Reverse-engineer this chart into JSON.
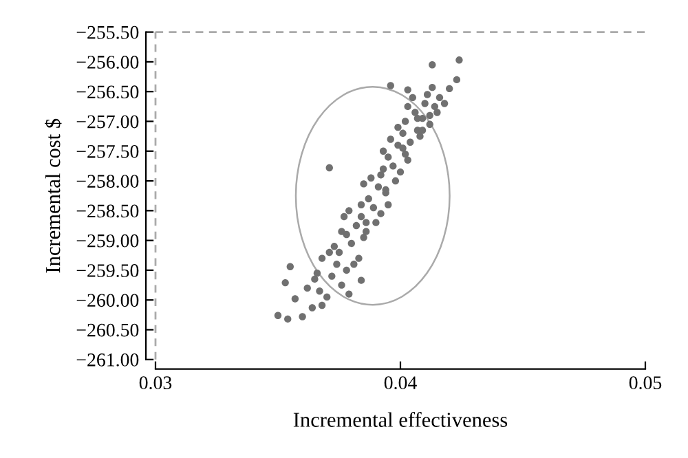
{
  "chart_data": {
    "type": "scatter",
    "xlabel": "Incremental effectiveness",
    "ylabel": "Incremental cost $",
    "xlim": [
      0.03,
      0.05
    ],
    "xticks": [
      0.03,
      0.04,
      0.05
    ],
    "ylim": [
      -261,
      -255.5
    ],
    "yticks": [
      {
        "value": -261,
        "label": "−261.00"
      },
      {
        "value": -260.5,
        "label": "−260.50"
      },
      {
        "value": -260,
        "label": "−260.00"
      },
      {
        "value": -259.5,
        "label": "−259.50"
      },
      {
        "value": -259,
        "label": "−259.00"
      },
      {
        "value": -258.5,
        "label": "−258.50"
      },
      {
        "value": -258,
        "label": "−258.00"
      },
      {
        "value": -257.5,
        "label": "−257.50"
      },
      {
        "value": -257,
        "label": "−257.00"
      },
      {
        "value": -256.5,
        "label": "−256.50"
      },
      {
        "value": -256,
        "label": "−256.00"
      },
      {
        "value": -255.5,
        "label": "−255.50"
      }
    ],
    "grid": false,
    "marker": "circle",
    "ref_lines": [
      {
        "axis": "x",
        "value": 0.03,
        "label": null,
        "color": "#aaaaaa",
        "line_style": "dashed"
      },
      {
        "axis": "y",
        "value": -255.5,
        "label": null,
        "color": "#aaaaaa",
        "line_style": "dashed"
      }
    ],
    "series": [
      {
        "color": "#707070",
        "x": [
          0.035,
          0.0354,
          0.036,
          0.0357,
          0.0353,
          0.0355,
          0.0364,
          0.0368,
          0.0379,
          0.0384,
          0.0371,
          0.0396,
          0.0403,
          0.0413,
          0.042,
          0.0423,
          0.0424,
          0.0413,
          0.0362,
          0.0366,
          0.037,
          0.0372,
          0.0368,
          0.0365,
          0.0374,
          0.0376,
          0.0371,
          0.0378,
          0.0367,
          0.0373,
          0.0375,
          0.0378,
          0.038,
          0.0382,
          0.0377,
          0.0383,
          0.0379,
          0.0385,
          0.0381,
          0.0376,
          0.0384,
          0.0386,
          0.0384,
          0.0387,
          0.0389,
          0.0391,
          0.0386,
          0.0392,
          0.0388,
          0.0394,
          0.039,
          0.0385,
          0.0393,
          0.0395,
          0.0392,
          0.0395,
          0.0397,
          0.0399,
          0.0394,
          0.04,
          0.0396,
          0.0402,
          0.0398,
          0.0393,
          0.0401,
          0.0403,
          0.0399,
          0.0402,
          0.0404,
          0.0406,
          0.0401,
          0.0407,
          0.0403,
          0.0409,
          0.0405,
          0.0408,
          0.041,
          0.0412,
          0.0407,
          0.0411,
          0.0414,
          0.0416,
          0.0412,
          0.0418,
          0.0409,
          0.0415
        ],
        "values": [
          -260.26,
          -260.32,
          -260.28,
          -259.98,
          -259.71,
          -259.44,
          -260.13,
          -260.09,
          -259.9,
          -259.67,
          -257.78,
          -256.4,
          -256.47,
          -256.43,
          -256.45,
          -256.3,
          -255.97,
          -256.05,
          -259.8,
          -259.55,
          -259.95,
          -259.6,
          -259.3,
          -259.65,
          -259.4,
          -259.75,
          -259.2,
          -259.5,
          -259.85,
          -259.1,
          -259.2,
          -258.9,
          -259.05,
          -258.75,
          -258.6,
          -259.3,
          -258.5,
          -258.95,
          -259.4,
          -258.85,
          -258.4,
          -258.7,
          -258.6,
          -258.3,
          -258.45,
          -258.1,
          -258.85,
          -258.55,
          -257.95,
          -258.2,
          -258.7,
          -258.05,
          -257.8,
          -258.4,
          -257.9,
          -257.6,
          -257.75,
          -257.4,
          -258.15,
          -257.85,
          -257.3,
          -257.55,
          -258.0,
          -257.5,
          -257.2,
          -257.65,
          -257.1,
          -257.0,
          -257.35,
          -256.85,
          -257.45,
          -257.15,
          -256.75,
          -256.95,
          -256.6,
          -257.25,
          -256.7,
          -256.9,
          -256.95,
          -256.55,
          -256.75,
          -256.6,
          -257.05,
          -256.7,
          -257.15,
          -256.85
        ]
      }
    ]
  }
}
